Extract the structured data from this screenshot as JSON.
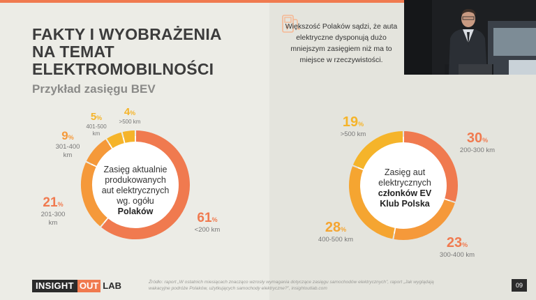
{
  "slide": {
    "title_lines": [
      "FAKTY I WYOBRAŻENIA",
      "NA TEMAT",
      "ELEKTROMOBILNOŚCI"
    ],
    "subtitle": "Przykład zasięgu BEV",
    "info_text": "Większość Polaków sądzi, że auta elektryczne dysponują dużo mniejszym zasięgiem niż ma to miejsce w rzeczywistości.",
    "info_icon": "ev-charger-icon",
    "logo": {
      "part1": "INSIGHT",
      "part2": "OUT",
      "part3": "LAB"
    },
    "source": "Źródło: raport „W ostatnich miesiącach znacząco wzrosły wymagania dotyczące zasięgu samochodów elektrycznych”, raport „Jak wyglądają wakacyjne podróże Polaków, użytkujących samochody elektryczne?”, insightoutlab.com",
    "page_number": "09",
    "colors": {
      "accent": "#f07a4f",
      "yellow": "#f5b42a",
      "orange_mid": "#f5993a",
      "text_dark": "#3c3c3c"
    }
  },
  "chart_data": [
    {
      "type": "pie",
      "donut": true,
      "center_lines": [
        "Zasięg aktualnie",
        "produkowanych",
        "aut elektrycznych",
        "wg. ogółu",
        "Polaków"
      ],
      "center_bold": [
        "ogółu",
        "Polaków"
      ],
      "slices": [
        {
          "value": 61,
          "pct_label": "61",
          "range": "<200 km",
          "color": "#f07a4f"
        },
        {
          "value": 21,
          "pct_label": "21",
          "range": "201-300 km",
          "color": "#f5993a"
        },
        {
          "value": 9,
          "pct_label": "9",
          "range": "301-400 km",
          "color": "#f5993a"
        },
        {
          "value": 5,
          "pct_label": "5",
          "range": "401-500 km",
          "color": "#f5b42a"
        },
        {
          "value": 4,
          "pct_label": "4",
          "range": ">500 km",
          "color": "#f5b42a"
        }
      ],
      "unit": "%"
    },
    {
      "type": "pie",
      "donut": true,
      "center_lines": [
        "Zasięg aut",
        "elektrycznych",
        "członków EV",
        "Klub Polska"
      ],
      "center_bold": [
        "członków",
        "EV",
        "Klub",
        "Polska"
      ],
      "slices": [
        {
          "value": 30,
          "pct_label": "30",
          "range": "200-300 km",
          "color": "#f07a4f"
        },
        {
          "value": 23,
          "pct_label": "23",
          "range": "300-400 km",
          "color": "#f5993a"
        },
        {
          "value": 28,
          "pct_label": "28",
          "range": "400-500 km",
          "color": "#f5a531"
        },
        {
          "value": 19,
          "pct_label": "19",
          "range": ">500 km",
          "color": "#f5b42a"
        }
      ],
      "unit": "%"
    }
  ]
}
